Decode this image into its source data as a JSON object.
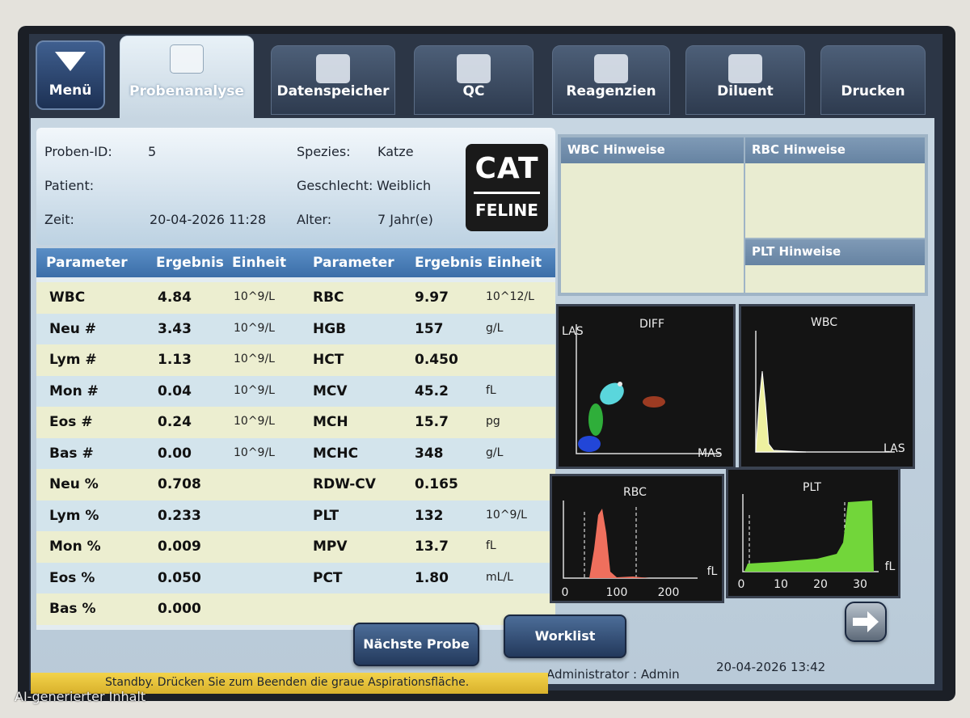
{
  "menu": "Menü",
  "tabs": [
    "Probenanalyse",
    "Datenspeicher",
    "QC",
    "Reagenzien",
    "Diluent",
    "Drucken"
  ],
  "sample": {
    "id_label": "Proben-ID:",
    "id": "5",
    "species_label": "Spezies:",
    "species": "Katze",
    "patient_label": "Patient:",
    "sex_label": "Geschlecht:",
    "sex": "Weiblich",
    "time_label": "Zeit:",
    "time": "20-04-2026 11:28",
    "age_label": "Alter:",
    "age": "7 Jahr(e)"
  },
  "badge": {
    "title": "CAT",
    "subtitle": "FELINE"
  },
  "notes": [
    "WBC Hinweise",
    "RBC Hinweise",
    "PLT Hinweise"
  ],
  "table": {
    "headers": [
      "Parameter",
      "Ergebnis",
      "Einheit",
      "Parameter",
      "Ergebnis",
      "Einheit"
    ],
    "left": [
      {
        "parameter": "WBC",
        "result": "4.84",
        "unit": "10^9/L"
      },
      {
        "parameter": "Neu #",
        "result": "3.43",
        "unit": "10^9/L"
      },
      {
        "parameter": "Lym #",
        "result": "1.13",
        "unit": "10^9/L"
      },
      {
        "parameter": "Mon #",
        "result": "0.04",
        "unit": "10^9/L"
      },
      {
        "parameter": "Eos #",
        "result": "0.24",
        "unit": "10^9/L"
      },
      {
        "parameter": "Bas #",
        "result": "0.00",
        "unit": "10^9/L"
      },
      {
        "parameter": "Neu %",
        "result": "0.708"
      },
      {
        "parameter": "Lym %",
        "result": "0.233"
      },
      {
        "parameter": "Mon %",
        "result": "0.009"
      },
      {
        "parameter": "Eos %",
        "result": "0.050"
      },
      {
        "parameter": "Bas %",
        "result": "0.000"
      }
    ],
    "right": [
      {
        "parameter": "RBC",
        "result": "9.97",
        "unit": "10^12/L"
      },
      {
        "parameter": "HGB",
        "result": "157",
        "unit": "g/L"
      },
      {
        "parameter": "HCT",
        "result": "0.450"
      },
      {
        "parameter": "MCV",
        "result": "45.2",
        "unit": "fL"
      },
      {
        "parameter": "MCH",
        "result": "15.7",
        "unit": "pg"
      },
      {
        "parameter": "MCHC",
        "result": "348",
        "unit": "g/L"
      },
      {
        "parameter": "RDW-CV",
        "result": "0.165"
      },
      {
        "parameter": "PLT",
        "result": "132",
        "unit": "10^9/L"
      },
      {
        "parameter": "MPV",
        "result": "13.7",
        "unit": "fL"
      },
      {
        "parameter": "PCT",
        "result": "1.80",
        "unit": "mL/L"
      }
    ]
  },
  "graphs": {
    "diff": {
      "title": "DIFF",
      "y_label": "LAS",
      "x_label": "MAS"
    },
    "wbc": {
      "title": "WBC",
      "x_label": "LAS"
    },
    "rbc": {
      "title": "RBC",
      "x_ticks": [
        "0",
        "100",
        "200"
      ],
      "x_unit": "fL"
    },
    "plt": {
      "title": "PLT",
      "x_ticks": [
        "0",
        "10",
        "20",
        "30"
      ],
      "x_unit": "fL"
    }
  },
  "buttons": {
    "next": "Nächste Probe",
    "worklist": "Worklist"
  },
  "footer": {
    "user": "Administrator : Admin",
    "datetime": "20-04-2026 13:42",
    "status": "Standby. Drücken Sie zum Beenden die graue Aspirationsfläche."
  },
  "watermark": "AI-generierter Inhalt"
}
